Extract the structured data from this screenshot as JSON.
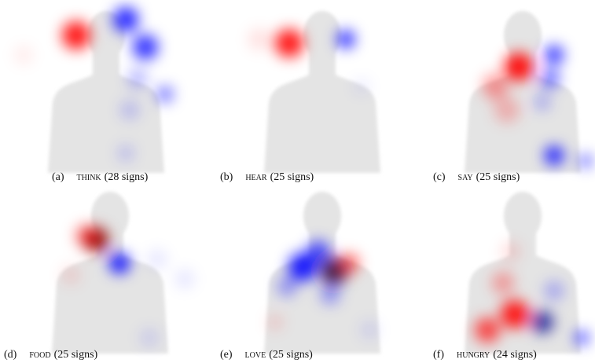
{
  "panels": [
    {
      "label": "(a)",
      "word": "think",
      "count": "(28 signs)"
    },
    {
      "label": "(b)",
      "word": "hear",
      "count": "(25 signs)"
    },
    {
      "label": "(c)",
      "word": "say",
      "count": "(25 signs)"
    },
    {
      "label": "(d)",
      "word": "food",
      "count": "(25 signs)"
    },
    {
      "label": "(e)",
      "word": "love",
      "count": "(25 signs)"
    },
    {
      "label": "(f)",
      "word": "hungry",
      "count": "(24 signs)"
    }
  ]
}
